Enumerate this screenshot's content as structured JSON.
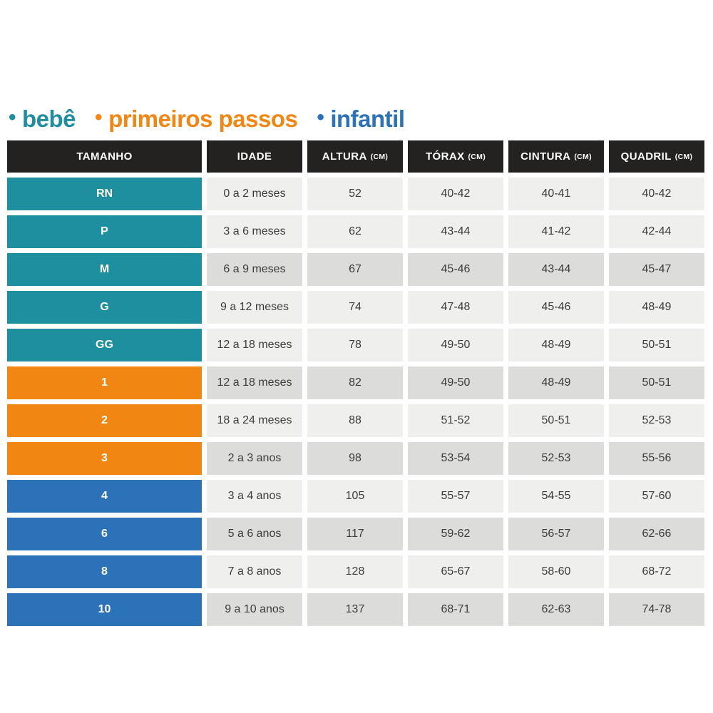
{
  "colors": {
    "bebe": "#1e8f9e",
    "primeiros_passos": "#f28612",
    "infantil": "#2b72b8",
    "header_bg": "#232220",
    "row_light": "#efefed",
    "row_dark": "#dcdcda",
    "cell_text": "#3c3c3c"
  },
  "legend": {
    "bullet": "•",
    "items": [
      {
        "label": "bebê",
        "group": "bebe"
      },
      {
        "label": "primeiros passos",
        "group": "primeiros_passos"
      },
      {
        "label": "infantil",
        "group": "infantil"
      }
    ]
  },
  "table": {
    "headers": [
      {
        "label": "TAMANHO",
        "unit": ""
      },
      {
        "label": "IDADE",
        "unit": ""
      },
      {
        "label": "ALTURA",
        "unit": "(CM)"
      },
      {
        "label": "TÓRAX",
        "unit": "(CM)"
      },
      {
        "label": "CINTURA",
        "unit": "(CM)"
      },
      {
        "label": "QUADRIL",
        "unit": "(CM)"
      }
    ],
    "rows": [
      {
        "size": "RN",
        "group": "bebe",
        "shade": "light",
        "idade": "0 a 2 meses",
        "altura": "52",
        "torax": "40-42",
        "cintura": "40-41",
        "quadril": "40-42"
      },
      {
        "size": "P",
        "group": "bebe",
        "shade": "light",
        "idade": "3 a 6 meses",
        "altura": "62",
        "torax": "43-44",
        "cintura": "41-42",
        "quadril": "42-44"
      },
      {
        "size": "M",
        "group": "bebe",
        "shade": "dark",
        "idade": "6 a 9 meses",
        "altura": "67",
        "torax": "45-46",
        "cintura": "43-44",
        "quadril": "45-47"
      },
      {
        "size": "G",
        "group": "bebe",
        "shade": "light",
        "idade": "9 a 12 meses",
        "altura": "74",
        "torax": "47-48",
        "cintura": "45-46",
        "quadril": "48-49"
      },
      {
        "size": "GG",
        "group": "bebe",
        "shade": "light",
        "idade": "12 a 18 meses",
        "altura": "78",
        "torax": "49-50",
        "cintura": "48-49",
        "quadril": "50-51"
      },
      {
        "size": "1",
        "group": "primeiros_passos",
        "shade": "dark",
        "idade": "12 a 18 meses",
        "altura": "82",
        "torax": "49-50",
        "cintura": "48-49",
        "quadril": "50-51"
      },
      {
        "size": "2",
        "group": "primeiros_passos",
        "shade": "light",
        "idade": "18 a 24 meses",
        "altura": "88",
        "torax": "51-52",
        "cintura": "50-51",
        "quadril": "52-53"
      },
      {
        "size": "3",
        "group": "primeiros_passos",
        "shade": "dark",
        "idade": "2 a 3 anos",
        "altura": "98",
        "torax": "53-54",
        "cintura": "52-53",
        "quadril": "55-56"
      },
      {
        "size": "4",
        "group": "infantil",
        "shade": "light",
        "idade": "3 a 4 anos",
        "altura": "105",
        "torax": "55-57",
        "cintura": "54-55",
        "quadril": "57-60"
      },
      {
        "size": "6",
        "group": "infantil",
        "shade": "dark",
        "idade": "5 a 6 anos",
        "altura": "117",
        "torax": "59-62",
        "cintura": "56-57",
        "quadril": "62-66"
      },
      {
        "size": "8",
        "group": "infantil",
        "shade": "light",
        "idade": "7 a 8 anos",
        "altura": "128",
        "torax": "65-67",
        "cintura": "58-60",
        "quadril": "68-72"
      },
      {
        "size": "10",
        "group": "infantil",
        "shade": "dark",
        "idade": "9 a 10 anos",
        "altura": "137",
        "torax": "68-71",
        "cintura": "62-63",
        "quadril": "74-78"
      }
    ]
  },
  "chart_data": {
    "type": "table",
    "title": "",
    "legend": [
      "bebê",
      "primeiros passos",
      "infantil"
    ],
    "legend_colors": [
      "#1e8f9e",
      "#f28612",
      "#2b72b8"
    ],
    "columns": [
      "TAMANHO",
      "IDADE",
      "ALTURA (CM)",
      "TÓRAX (CM)",
      "CINTURA (CM)",
      "QUADRIL (CM)"
    ],
    "rows": [
      [
        "RN",
        "0 a 2 meses",
        "52",
        "40-42",
        "40-41",
        "40-42"
      ],
      [
        "P",
        "3 a 6 meses",
        "62",
        "43-44",
        "41-42",
        "42-44"
      ],
      [
        "M",
        "6 a 9 meses",
        "67",
        "45-46",
        "43-44",
        "45-47"
      ],
      [
        "G",
        "9 a 12 meses",
        "74",
        "47-48",
        "45-46",
        "48-49"
      ],
      [
        "GG",
        "12 a 18 meses",
        "78",
        "49-50",
        "48-49",
        "50-51"
      ],
      [
        "1",
        "12 a 18 meses",
        "82",
        "49-50",
        "48-49",
        "50-51"
      ],
      [
        "2",
        "18 a 24 meses",
        "88",
        "51-52",
        "50-51",
        "52-53"
      ],
      [
        "3",
        "2 a 3 anos",
        "98",
        "53-54",
        "52-53",
        "55-56"
      ],
      [
        "4",
        "3 a 4 anos",
        "105",
        "55-57",
        "54-55",
        "57-60"
      ],
      [
        "6",
        "5 a 6 anos",
        "117",
        "59-62",
        "56-57",
        "62-66"
      ],
      [
        "8",
        "7 a 8 anos",
        "128",
        "65-67",
        "58-60",
        "68-72"
      ],
      [
        "10",
        "9 a 10 anos",
        "137",
        "68-71",
        "62-63",
        "74-78"
      ]
    ],
    "row_groups": [
      "bebe",
      "bebe",
      "bebe",
      "bebe",
      "bebe",
      "primeiros_passos",
      "primeiros_passos",
      "primeiros_passos",
      "infantil",
      "infantil",
      "infantil",
      "infantil"
    ]
  }
}
